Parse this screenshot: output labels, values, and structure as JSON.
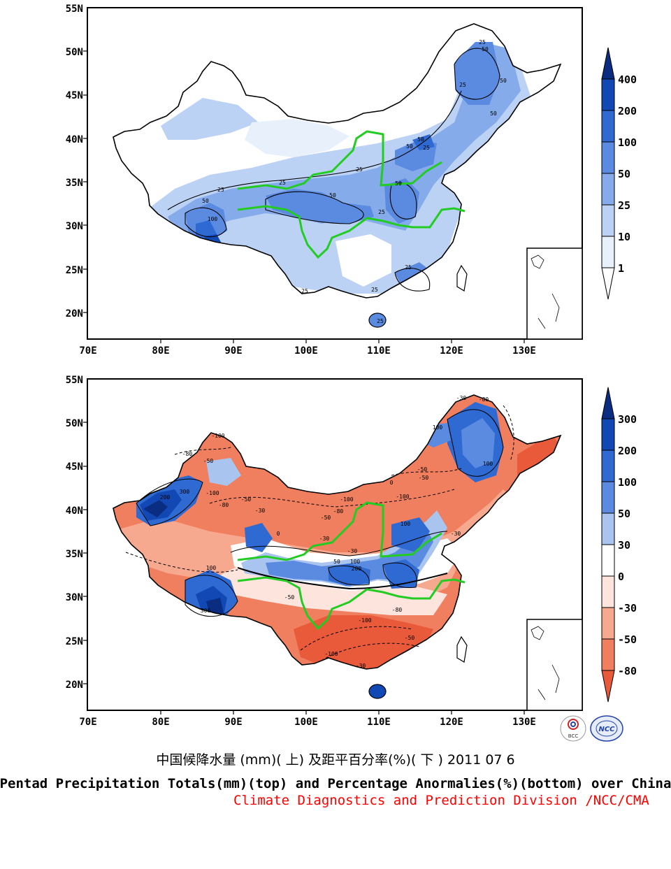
{
  "colors": {
    "china_fill": "#ffffff",
    "border": "#000000",
    "river": "#22cc22",
    "credit": "#ff0000"
  },
  "top_map": {
    "y_ticks": [
      "55N",
      "50N",
      "45N",
      "40N",
      "35N",
      "30N",
      "25N",
      "20N"
    ],
    "x_ticks": [
      "70E",
      "80E",
      "90E",
      "100E",
      "110E",
      "120E",
      "130E"
    ],
    "colorbar": {
      "labels": [
        "400",
        "200",
        "100",
        "50",
        "25",
        "10",
        "1"
      ],
      "colors": [
        "#0a2d82",
        "#1248b4",
        "#2e6ad2",
        "#5a8be0",
        "#86abeb",
        "#bcd2f5",
        "#e8f0fc",
        "#ffffff"
      ]
    },
    "contour_labels": [
      "25",
      "50",
      "25",
      "50",
      "25",
      "50",
      "25",
      "50",
      "25",
      "50",
      "25",
      "50",
      "25",
      "50",
      "100",
      "25",
      "50",
      "25",
      "25",
      "25"
    ]
  },
  "bottom_map": {
    "y_ticks": [
      "55N",
      "50N",
      "45N",
      "40N",
      "35N",
      "30N",
      "25N",
      "20N"
    ],
    "x_ticks": [
      "70E",
      "80E",
      "90E",
      "100E",
      "110E",
      "120E",
      "130E"
    ],
    "colorbar": {
      "labels": [
        "300",
        "200",
        "100",
        "50",
        "30",
        "0",
        "-30",
        "-50",
        "-80"
      ],
      "colors": [
        "#0a2d82",
        "#1248b4",
        "#2e6ad2",
        "#5a8be0",
        "#a9c4ef",
        "#ffffff",
        "#fde4dc",
        "#f7a98f",
        "#f07f5f",
        "#e85a3a"
      ]
    },
    "contour_labels": [
      "-80",
      "-30",
      "100",
      "-100",
      "-80",
      "-50",
      "-100",
      "200",
      "300",
      "-100",
      "-80",
      "-50",
      "-30",
      "0",
      "-50",
      "-100",
      "-80",
      "-50",
      "-30",
      "100",
      "-30",
      "50",
      "100",
      "200",
      "300",
      "100",
      "-50",
      "-30",
      "-100",
      "-50",
      "-80",
      "0",
      "100",
      "-30",
      "-50",
      "-100"
    ]
  },
  "captions": {
    "chinese": "中国候降水量 (mm)( 上) 及距平百分率(%)( 下 ) 2011 07 6",
    "english": "Pentad Precipitation Totals(mm)(top) and Percentage Anormalies(%)(bottom) over China",
    "credit": "Climate Diagnostics and Prediction Division /NCC/CMA"
  },
  "logos": {
    "left": "BCC",
    "right": "NCC"
  }
}
